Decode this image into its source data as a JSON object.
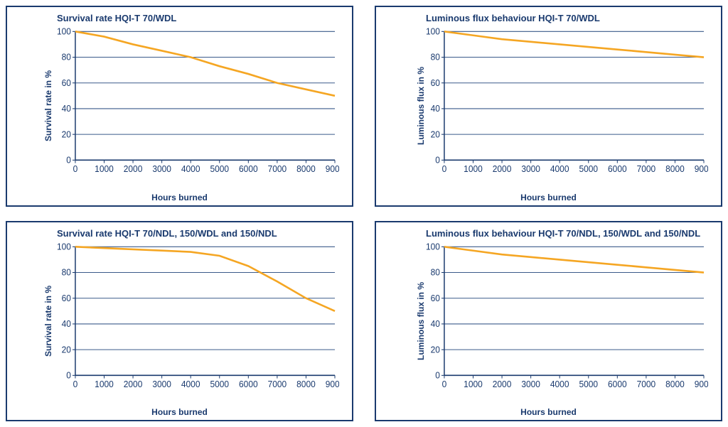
{
  "charts": [
    {
      "id": "chart-tl",
      "type": "line",
      "title": "Survival rate HQI-T 70/WDL",
      "xlabel": "Hours burned",
      "ylabel": "Survival rate in %",
      "xlim": [
        0,
        9000
      ],
      "ylim": [
        0,
        100
      ],
      "xtick_step": 1000,
      "ytick_step": 20,
      "grid_color": "#3a5a8a",
      "axis_color": "#1a3a6e",
      "background_color": "#ffffff",
      "line_color": "#f5a623",
      "line_width": 2.5,
      "title_fontsize": 13,
      "label_fontsize": 12,
      "tick_fontsize": 12,
      "x": [
        0,
        1000,
        2000,
        3000,
        4000,
        5000,
        6000,
        7000,
        8000,
        9000
      ],
      "y": [
        100,
        96,
        90,
        85,
        80,
        73,
        67,
        60,
        55,
        50
      ]
    },
    {
      "id": "chart-tr",
      "type": "line",
      "title": "Luminous flux behaviour HQI-T 70/WDL",
      "xlabel": "Hours burned",
      "ylabel": "Luminous flux in %",
      "xlim": [
        0,
        9000
      ],
      "ylim": [
        0,
        100
      ],
      "xtick_step": 1000,
      "ytick_step": 20,
      "grid_color": "#3a5a8a",
      "axis_color": "#1a3a6e",
      "background_color": "#ffffff",
      "line_color": "#f5a623",
      "line_width": 2.5,
      "title_fontsize": 13,
      "label_fontsize": 12,
      "tick_fontsize": 12,
      "x": [
        0,
        1000,
        2000,
        3000,
        4000,
        5000,
        6000,
        7000,
        8000,
        9000
      ],
      "y": [
        100,
        97,
        94,
        92,
        90,
        88,
        86,
        84,
        82,
        80
      ]
    },
    {
      "id": "chart-bl",
      "type": "line",
      "title": "Survival rate HQI-T 70/NDL, 150/WDL and 150/NDL",
      "xlabel": "Hours burned",
      "ylabel": "Survival rate in %",
      "xlim": [
        0,
        9000
      ],
      "ylim": [
        0,
        100
      ],
      "xtick_step": 1000,
      "ytick_step": 20,
      "grid_color": "#3a5a8a",
      "axis_color": "#1a3a6e",
      "background_color": "#ffffff",
      "line_color": "#f5a623",
      "line_width": 2.5,
      "title_fontsize": 13,
      "label_fontsize": 12,
      "tick_fontsize": 12,
      "x": [
        0,
        1000,
        2000,
        3000,
        4000,
        5000,
        6000,
        7000,
        8000,
        9000
      ],
      "y": [
        100,
        99,
        98,
        97,
        96,
        93,
        85,
        73,
        60,
        50
      ]
    },
    {
      "id": "chart-br",
      "type": "line",
      "title": "Luminous flux behaviour HQI-T 70/NDL, 150/WDL and 150/NDL",
      "xlabel": "Hours burned",
      "ylabel": "Luminous flux in %",
      "xlim": [
        0,
        9000
      ],
      "ylim": [
        0,
        100
      ],
      "xtick_step": 1000,
      "ytick_step": 20,
      "grid_color": "#3a5a8a",
      "axis_color": "#1a3a6e",
      "background_color": "#ffffff",
      "line_color": "#f5a623",
      "line_width": 2.5,
      "title_fontsize": 13,
      "label_fontsize": 12,
      "tick_fontsize": 12,
      "x": [
        0,
        1000,
        2000,
        3000,
        4000,
        5000,
        6000,
        7000,
        8000,
        9000
      ],
      "y": [
        100,
        97,
        94,
        92,
        90,
        88,
        86,
        84,
        82,
        80
      ]
    }
  ]
}
